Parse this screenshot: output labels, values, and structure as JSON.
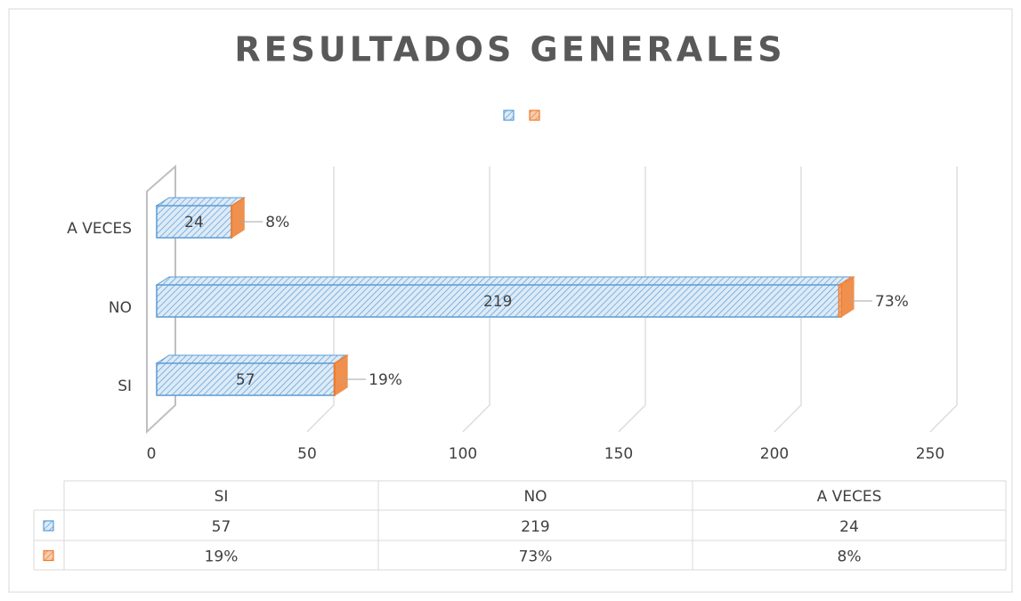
{
  "chart_data": {
    "type": "bar3d_stacked_horizontal",
    "title": "RESULTADOS GENERALES",
    "categories": [
      "SI",
      "NO",
      "A VECES"
    ],
    "series": [
      {
        "color": "#5b9bd5",
        "values": [
          57,
          219,
          24
        ]
      },
      {
        "color": "#ed7d31",
        "values": [
          0.19,
          0.73,
          0.08
        ],
        "value_labels": [
          "19%",
          "73%",
          "8%"
        ]
      }
    ],
    "xlim": [
      0,
      250
    ],
    "xticks": [
      0,
      50,
      100,
      150,
      200,
      250
    ],
    "grid": true,
    "legend": "top",
    "data_table": true
  }
}
